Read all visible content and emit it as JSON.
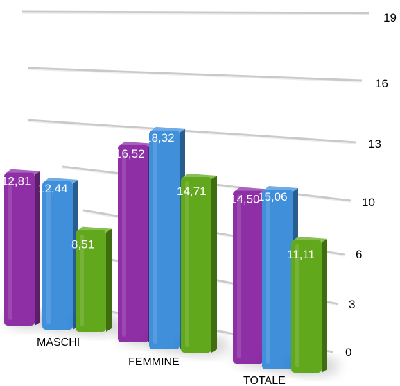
{
  "chart_data": {
    "type": "bar",
    "categories": [
      "MASCHI",
      "FEMMINE",
      "TOTALE"
    ],
    "series": [
      {
        "values": [
          12.81,
          16.52,
          14.5
        ],
        "labels": [
          "12,81",
          "16,52",
          "14,50"
        ],
        "color": "#8e2fa6"
      },
      {
        "values": [
          12.44,
          18.32,
          15.06
        ],
        "labels": [
          "12,44",
          "18,32",
          "15,06"
        ],
        "color": "#3f8fdb"
      },
      {
        "values": [
          8.51,
          14.71,
          11.11
        ],
        "labels": [
          "8,51",
          "14,71",
          "11,11"
        ],
        "color": "#62a81c"
      }
    ],
    "y_ticks": [
      "0",
      "3",
      "6",
      "10",
      "13",
      "16",
      "19"
    ],
    "ylim": [
      0,
      19
    ],
    "grid": true
  }
}
